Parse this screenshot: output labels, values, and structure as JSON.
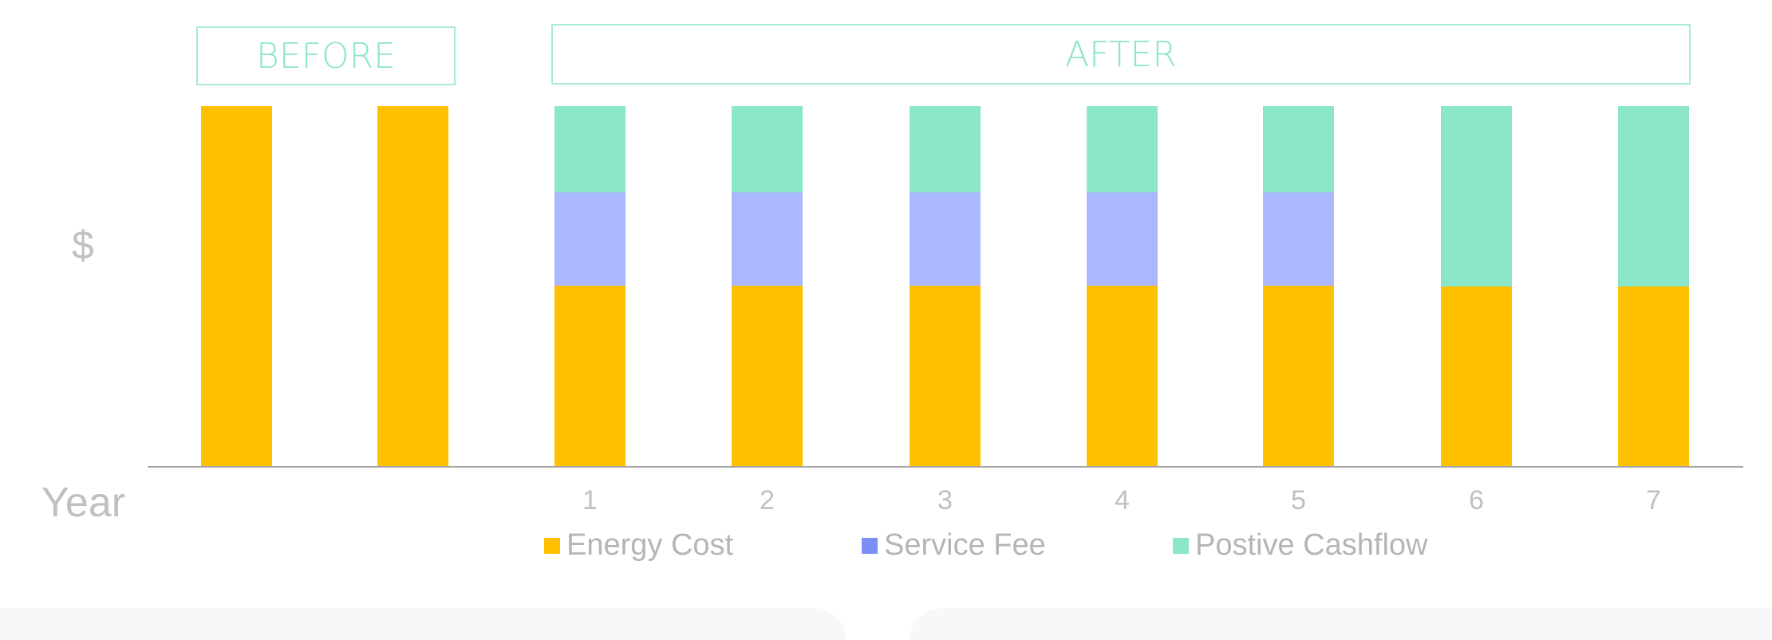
{
  "labels": {
    "before": "BEFORE",
    "after": "AFTER",
    "y_axis": "$",
    "x_axis": "Year"
  },
  "colors": {
    "energy": "#FFC000",
    "service": "#AAB8FF",
    "cashflow": "#8CE6C8",
    "legend_service": "#7B8FF7",
    "box_border": "#A8ECD6"
  },
  "ticks": [
    "",
    "",
    "1",
    "2",
    "3",
    "4",
    "5",
    "6",
    "7"
  ],
  "legend": [
    {
      "label": "Energy Cost",
      "color": "#FFC000"
    },
    {
      "label": "Service Fee",
      "color": "#7B8FF7"
    },
    {
      "label": "Postive Cashflow",
      "color": "#8CE6C8"
    }
  ],
  "chart_data": {
    "type": "bar",
    "stacked": true,
    "title": "",
    "xlabel": "Year",
    "ylabel": "$",
    "categories": [
      "Before",
      "Before",
      "1",
      "2",
      "3",
      "4",
      "5",
      "6",
      "7"
    ],
    "groups": [
      {
        "label": "BEFORE",
        "categories": [
          "Before",
          "Before"
        ]
      },
      {
        "label": "AFTER",
        "categories": [
          "1",
          "2",
          "3",
          "4",
          "5",
          "6",
          "7"
        ]
      }
    ],
    "series": [
      {
        "name": "Energy Cost",
        "values": [
          100,
          100,
          50,
          50,
          50,
          50,
          50,
          50,
          50
        ]
      },
      {
        "name": "Service Fee",
        "values": [
          0,
          0,
          26,
          26,
          26,
          26,
          26,
          0,
          0
        ]
      },
      {
        "name": "Postive Cashflow",
        "values": [
          0,
          0,
          24,
          24,
          24,
          24,
          24,
          50,
          50
        ]
      }
    ],
    "ylim": [
      0,
      100
    ],
    "y_tick_labels": "none (relative $)",
    "grid": false,
    "legend_position": "bottom"
  }
}
